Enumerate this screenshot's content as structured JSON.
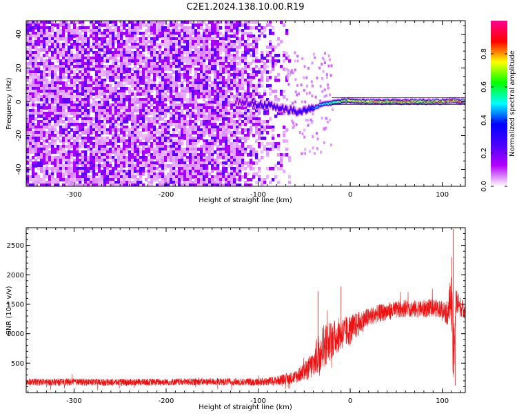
{
  "figure": {
    "title": "C2E1.2024.138.10.00.R19"
  },
  "chart_data": [
    {
      "type": "heatmap",
      "xlabel": "Height of straight line (km)",
      "ylabel": "Frequency (Hz)",
      "xlim": [
        -352,
        125
      ],
      "ylim": [
        -50,
        48
      ],
      "xticks": [
        -300,
        -200,
        -100,
        0,
        100
      ],
      "yticks": [
        -40,
        -20,
        0,
        20,
        40
      ],
      "colorbar": {
        "label": "Normalized spectral amplitude",
        "range": [
          0,
          1
        ],
        "ticks": [
          0.0,
          0.2,
          0.4,
          0.6,
          0.8
        ],
        "tick_labels": [
          "0.0",
          "0.2",
          "0.4",
          "0.6",
          "0.8"
        ],
        "colors": [
          "#ffffff",
          "#b400ff",
          "#4b00ff",
          "#0000ff",
          "#00ffff",
          "#00ff00",
          "#ffff00",
          "#ff0000",
          "#ff0090"
        ]
      },
      "noise_region": {
        "x_from": -352,
        "x_to": -65,
        "freq_from": -50,
        "freq_to": 48,
        "amplitude": 0.08
      },
      "signal_trace": {
        "x": [
          -125,
          -110,
          -100,
          -90,
          -80,
          -70,
          -60,
          -50,
          -40,
          -30,
          -20,
          -10,
          0,
          20,
          40,
          60,
          80,
          100,
          110,
          125
        ],
        "frequency": [
          1,
          0,
          -1,
          -2,
          -3,
          -4,
          -5,
          -4,
          -3,
          -1,
          0,
          1,
          1,
          0.5,
          0.5,
          0.5,
          0.5,
          0.5,
          1,
          0.5
        ],
        "amplitude": [
          0.18,
          0.25,
          0.32,
          0.32,
          0.3,
          0.3,
          0.32,
          0.35,
          0.45,
          0.55,
          0.65,
          0.75,
          0.8,
          0.85,
          0.85,
          0.85,
          0.85,
          0.88,
          0.9,
          0.88
        ]
      }
    },
    {
      "type": "line",
      "xlabel": "Height of straight line (km)",
      "ylabel": "SNR (10 * v/v)",
      "xlim": [
        -352,
        125
      ],
      "ylim": [
        0,
        2800
      ],
      "xticks": [
        -300,
        -200,
        -100,
        0,
        100
      ],
      "yticks": [
        500,
        1000,
        1500,
        2000,
        2500
      ],
      "color": "#ee1111",
      "series": [
        {
          "x": [
            -352,
            -300,
            -250,
            -200,
            -150,
            -100,
            -80,
            -60,
            -50,
            -40,
            -35,
            -30,
            -20,
            -10,
            0,
            10,
            20,
            30,
            40,
            50,
            60,
            70,
            80,
            90,
            100,
            105,
            110,
            112,
            115,
            120,
            125
          ],
          "y": [
            180,
            180,
            175,
            180,
            185,
            180,
            200,
            260,
            350,
            480,
            650,
            780,
            900,
            1000,
            1060,
            1180,
            1280,
            1340,
            1380,
            1400,
            1440,
            1420,
            1420,
            1440,
            1420,
            1350,
            1600,
            500,
            1550,
            1450,
            1400
          ],
          "noise_amplitude": [
            60,
            60,
            60,
            60,
            60,
            65,
            80,
            110,
            150,
            250,
            350,
            400,
            320,
            280,
            260,
            200,
            160,
            150,
            150,
            150,
            150,
            150,
            150,
            150,
            150,
            200,
            450,
            600,
            250,
            160,
            150
          ]
        }
      ]
    }
  ]
}
